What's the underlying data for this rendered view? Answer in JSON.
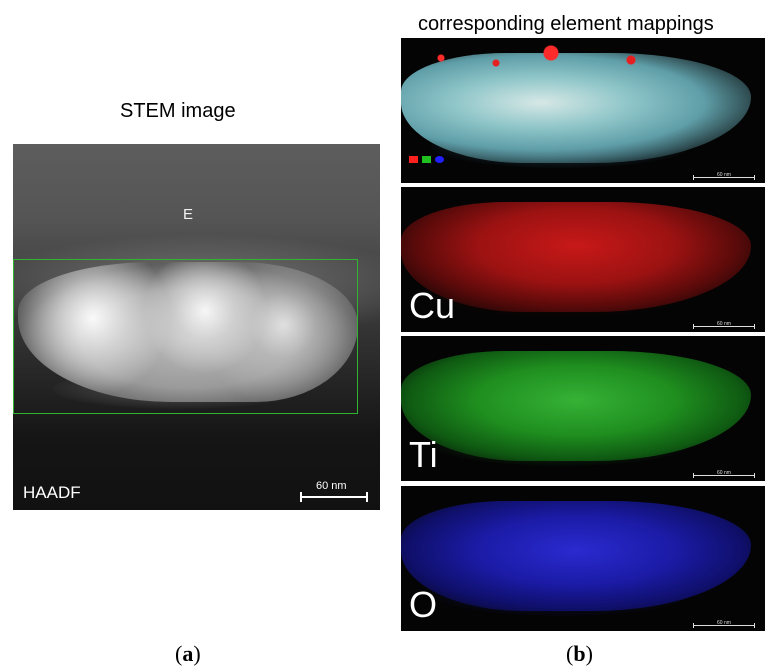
{
  "panel_a": {
    "title": "STEM image",
    "label_e": "E",
    "label_mode": "HAADF",
    "scale_bar": "60 nm",
    "caption": "(a)",
    "caption_letter": "a"
  },
  "panel_b": {
    "title": "corresponding element mappings",
    "caption": "(b)",
    "caption_letter": "b",
    "maps": [
      {
        "element": "",
        "scale_bar": "60 nm"
      },
      {
        "element": "Cu",
        "scale_bar": "60 nm"
      },
      {
        "element": "Ti",
        "scale_bar": "60 nm"
      },
      {
        "element": "O",
        "scale_bar": "60 nm"
      }
    ]
  },
  "colors": {
    "roi_box": "#2fb52f",
    "cu": "#c81818",
    "ti": "#36b236",
    "o": "#2a2ad0"
  }
}
